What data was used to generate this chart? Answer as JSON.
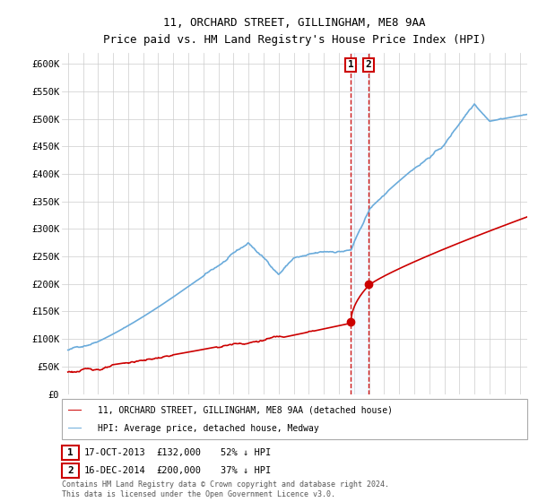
{
  "title": "11, ORCHARD STREET, GILLINGHAM, ME8 9AA",
  "subtitle": "Price paid vs. HM Land Registry's House Price Index (HPI)",
  "ylim": [
    0,
    620000
  ],
  "yticks": [
    0,
    50000,
    100000,
    150000,
    200000,
    250000,
    300000,
    350000,
    400000,
    450000,
    500000,
    550000,
    600000
  ],
  "ytick_labels": [
    "£0",
    "£50K",
    "£100K",
    "£150K",
    "£200K",
    "£250K",
    "£300K",
    "£350K",
    "£400K",
    "£450K",
    "£500K",
    "£550K",
    "£600K"
  ],
  "hpi_color": "#6aabdb",
  "price_color": "#cc0000",
  "sale1_x": 2013.79,
  "sale2_x": 2014.96,
  "sale1_price": 132000,
  "sale2_price": 200000,
  "legend1_text": "11, ORCHARD STREET, GILLINGHAM, ME8 9AA (detached house)",
  "legend2_text": "HPI: Average price, detached house, Medway",
  "footer": "Contains HM Land Registry data © Crown copyright and database right 2024.\nThis data is licensed under the Open Government Licence v3.0.",
  "background_color": "#ffffff",
  "grid_color": "#cccccc",
  "shade_color": "#ddeeff"
}
